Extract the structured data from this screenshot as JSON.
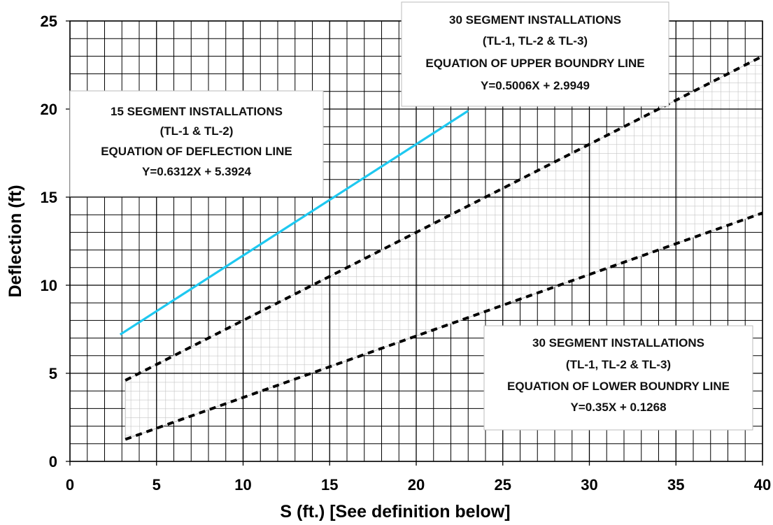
{
  "chart_data": {
    "type": "line",
    "xlabel": "S (ft.) [See definition below]",
    "ylabel": "Deflection (ft)",
    "xlim": [
      0,
      40
    ],
    "ylim": [
      0,
      25
    ],
    "x_ticks": [
      "0",
      "5",
      "10",
      "15",
      "20",
      "25",
      "30",
      "35",
      "40"
    ],
    "y_ticks": [
      "0",
      "5",
      "10",
      "15",
      "20",
      "25"
    ],
    "grid": true,
    "series": [
      {
        "key": "deflection",
        "style": "solid",
        "color": "#1ec8f0",
        "x": [
          2.9,
          23.0
        ],
        "y": [
          7.2,
          19.9
        ]
      },
      {
        "key": "upper",
        "style": "dashed",
        "color": "#000000",
        "x": [
          3.2,
          40.0
        ],
        "y": [
          4.6,
          23.0
        ]
      },
      {
        "key": "lower",
        "style": "dashed",
        "color": "#000000",
        "x": [
          3.2,
          40.0
        ],
        "y": [
          1.25,
          14.1
        ]
      }
    ],
    "shaded_band": {
      "between": [
        "upper",
        "lower"
      ],
      "pattern": "grid",
      "color": "#bdbdbd"
    },
    "annotations": [
      {
        "key": "deflection_box",
        "lines": [
          "15 SEGMENT INSTALLATIONS",
          "(TL-1 & TL-2)",
          "EQUATION OF DEFLECTION LINE",
          "Y=0.6312X + 5.3924"
        ]
      },
      {
        "key": "upper_box",
        "lines": [
          "30 SEGMENT INSTALLATIONS",
          "(TL-1, TL-2 & TL-3)",
          "EQUATION OF UPPER BOUNDRY LINE",
          "Y=0.5006X + 2.9949"
        ]
      },
      {
        "key": "lower_box",
        "lines": [
          "30 SEGMENT INSTALLATIONS",
          "(TL-1, TL-2 & TL-3)",
          "EQUATION OF LOWER BOUNDRY LINE",
          "Y=0.35X + 0.1268"
        ]
      }
    ]
  }
}
